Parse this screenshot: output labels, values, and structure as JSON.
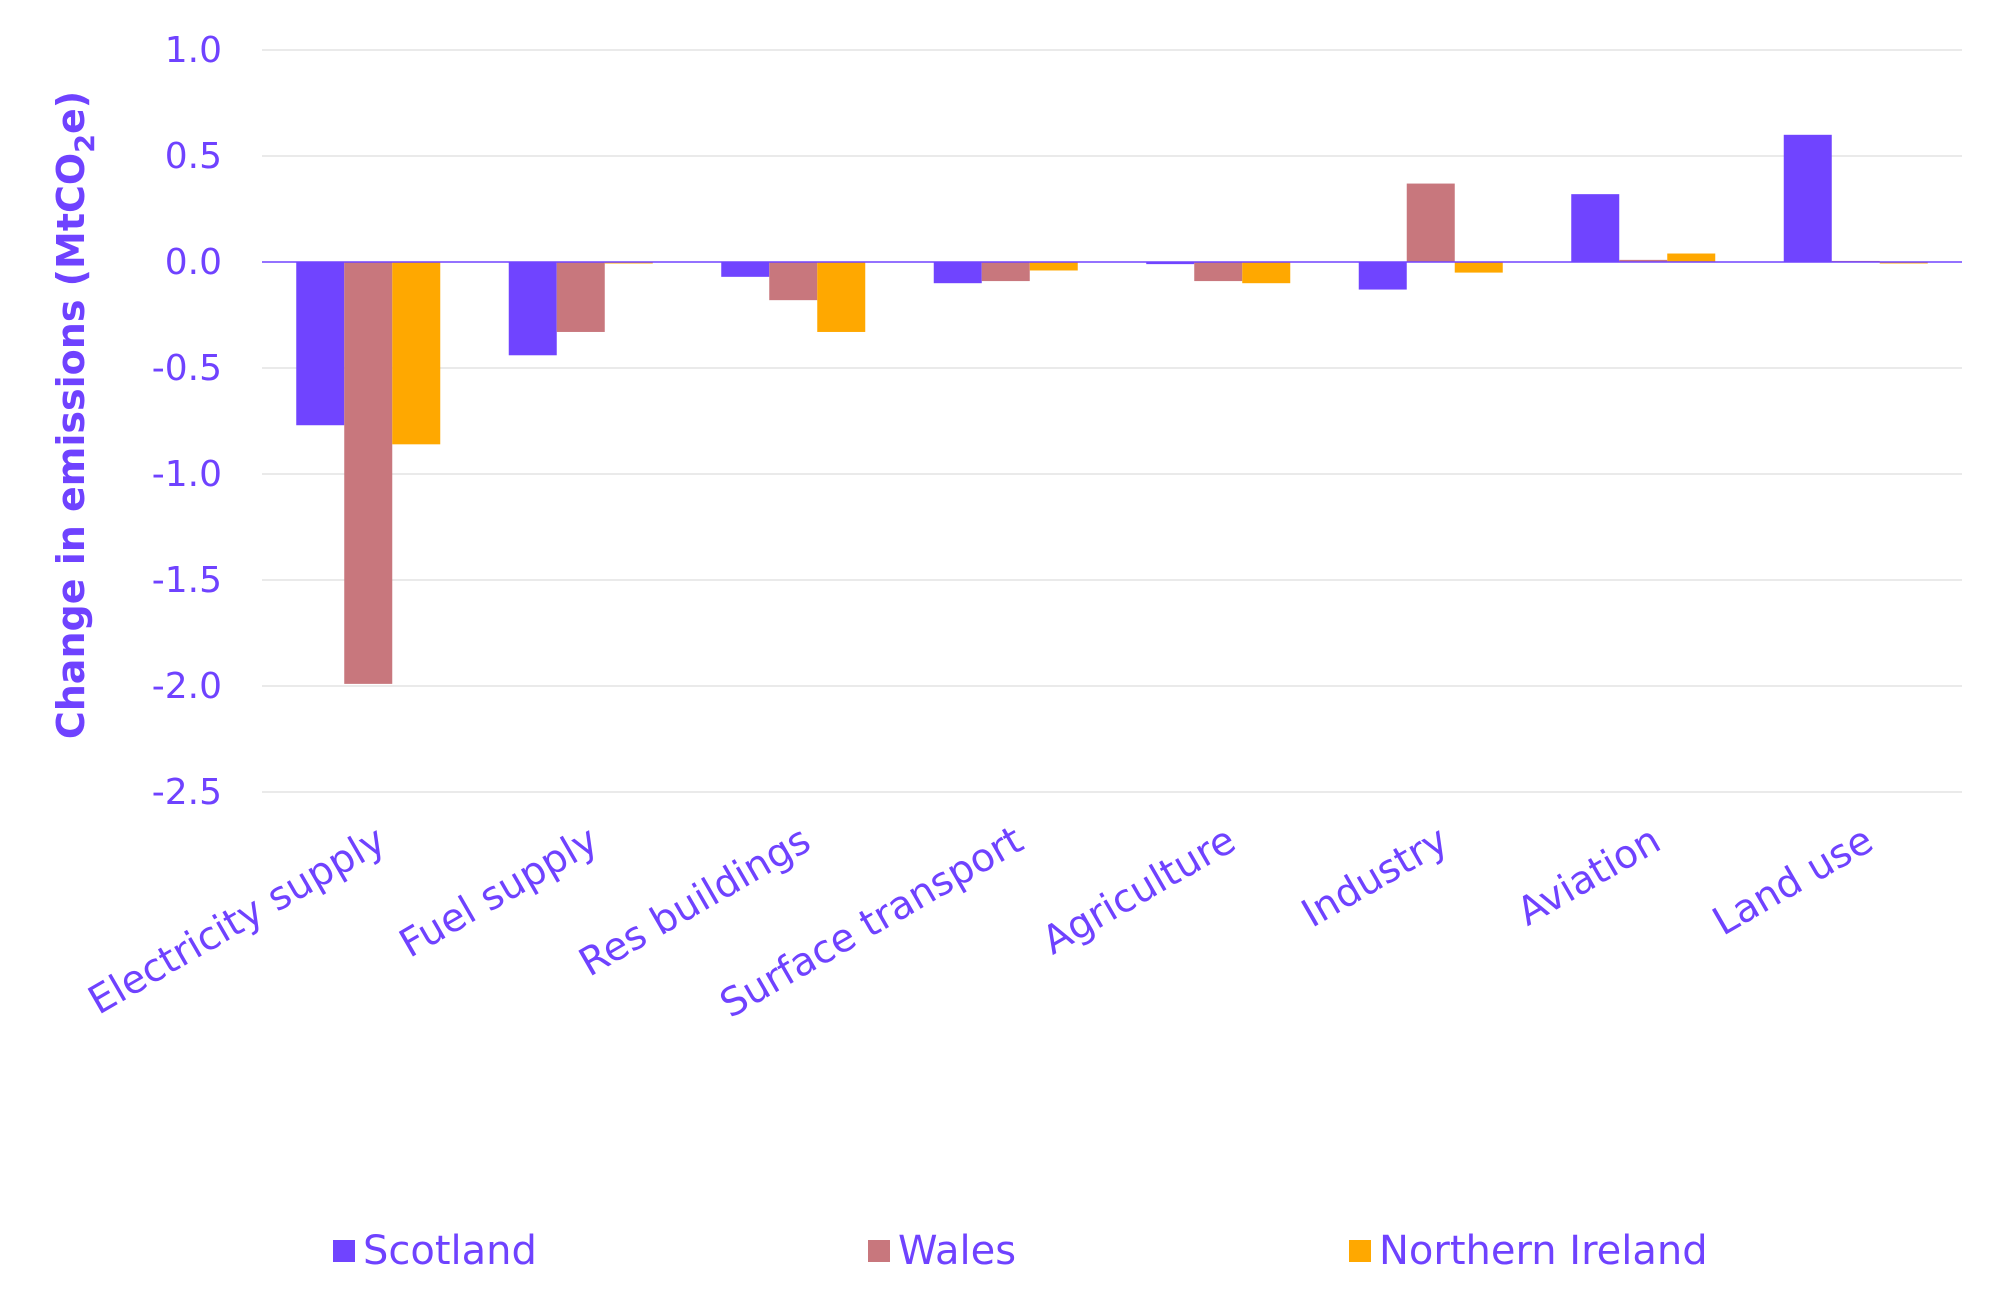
{
  "chart_data": {
    "type": "bar",
    "categories": [
      "Electricity supply",
      "Fuel supply",
      "Res buildings",
      "Surface transport",
      "Agriculture",
      "Industry",
      "Aviation",
      "Land use"
    ],
    "series": [
      {
        "name": "Scotland",
        "color": "#7044ff",
        "values": [
          -0.77,
          -0.44,
          -0.07,
          -0.1,
          -0.01,
          -0.13,
          0.32,
          0.6
        ]
      },
      {
        "name": "Wales",
        "color": "#c8777d",
        "values": [
          -1.99,
          -0.33,
          -0.18,
          -0.09,
          -0.09,
          0.37,
          0.01,
          0.005
        ]
      },
      {
        "name": "Northern Ireland",
        "color": "#ffa800",
        "values": [
          -0.86,
          0.0,
          -0.33,
          -0.04,
          -0.1,
          -0.05,
          0.04,
          0.0
        ]
      }
    ],
    "ylabel_main": "Change in emissions (MtCO",
    "ylabel_sub": "2",
    "ylabel_end": "e)",
    "ylim": [
      -2.5,
      1.0
    ],
    "yticks": [
      1.0,
      0.5,
      0.0,
      -0.5,
      -1.0,
      -1.5,
      -2.0,
      -2.5
    ],
    "ytick_labels": [
      "1.0",
      "0.5",
      "0.0",
      "-0.5",
      "-1.0",
      "-1.5",
      "-2.0",
      "-2.5"
    ],
    "grid": true,
    "legend_position": "bottom"
  }
}
